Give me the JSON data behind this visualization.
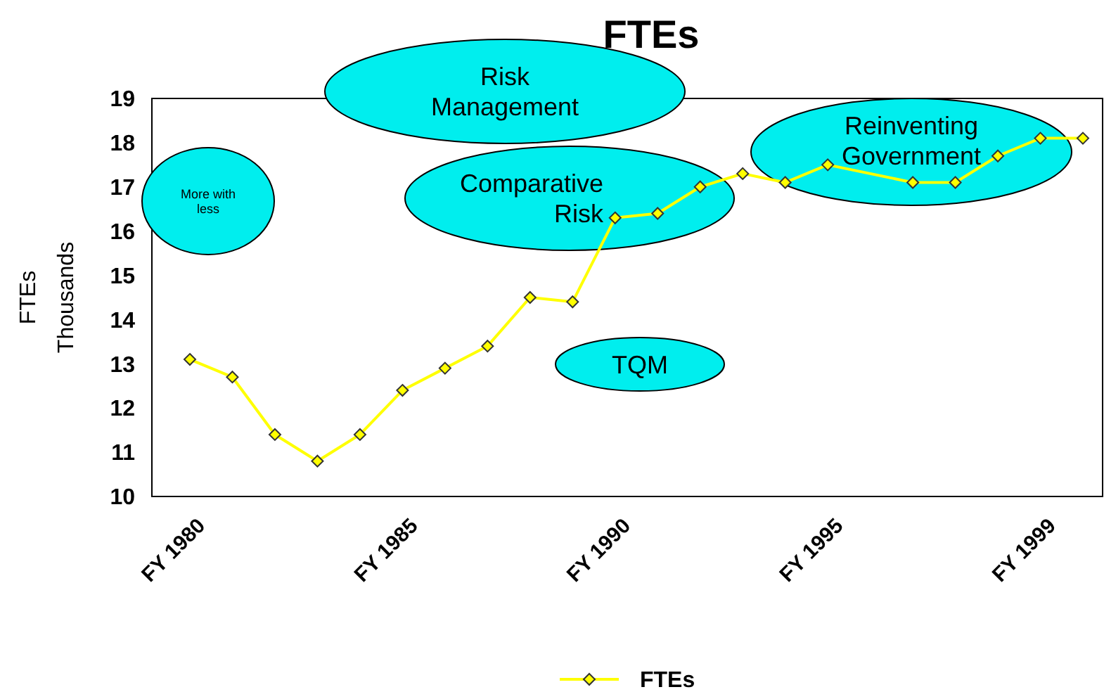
{
  "chart_data": {
    "type": "line",
    "title": "FTEs",
    "ylabel": "FTEs\nThousands",
    "categories": [
      "FY 1980",
      null,
      null,
      null,
      null,
      "FY 1985",
      null,
      null,
      null,
      null,
      "FY 1990",
      null,
      null,
      null,
      null,
      "FY 1995",
      null,
      null,
      null,
      null,
      "FY 1999",
      null
    ],
    "series": [
      {
        "name": "FTEs",
        "color": "#ffff00",
        "values": [
          13.1,
          12.7,
          11.4,
          10.8,
          11.4,
          12.4,
          12.9,
          13.4,
          14.5,
          14.4,
          16.3,
          16.4,
          17.0,
          17.3,
          17.1,
          17.5,
          null,
          17.1,
          17.1,
          17.7,
          18.1,
          18.1
        ]
      }
    ],
    "ylim": [
      10,
      19
    ],
    "yticks": [
      10,
      11,
      12,
      13,
      14,
      15,
      16,
      17,
      18,
      19
    ],
    "marker": "diamond",
    "legend": "bottom",
    "grid": false,
    "annotations": [
      "More with\nless",
      "Risk\nManagement",
      "Comparative\nRisk",
      "TQM",
      "Reinventing\nGovernment"
    ]
  }
}
